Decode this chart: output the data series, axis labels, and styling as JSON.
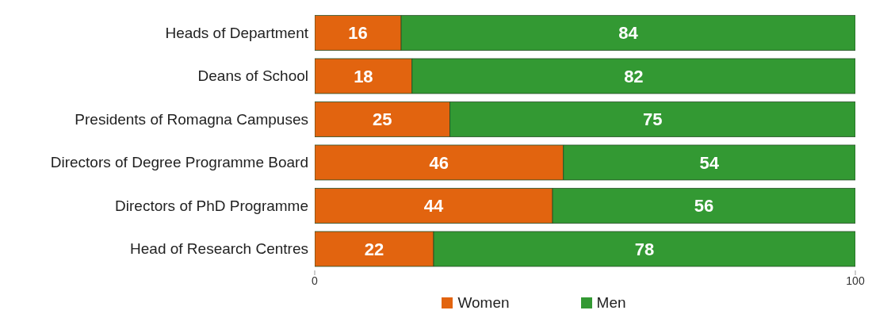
{
  "chart_data": {
    "type": "bar",
    "orientation": "horizontal",
    "stacked": true,
    "categories": [
      "Heads of Department",
      "Deans of School",
      "Presidents of Romagna Campuses",
      "Directors of Degree Programme Board",
      "Directors of PhD Programme",
      "Head of Research Centres"
    ],
    "series": [
      {
        "name": "Women",
        "color": "#e2640f",
        "values": [
          16,
          18,
          25,
          46,
          44,
          22
        ]
      },
      {
        "name": "Men",
        "color": "#339933",
        "values": [
          84,
          82,
          75,
          54,
          56,
          78
        ]
      }
    ],
    "xlim": [
      0,
      100
    ],
    "xticks": [
      0,
      100
    ],
    "data_labels": true,
    "legend": "bottom",
    "grid": false
  }
}
